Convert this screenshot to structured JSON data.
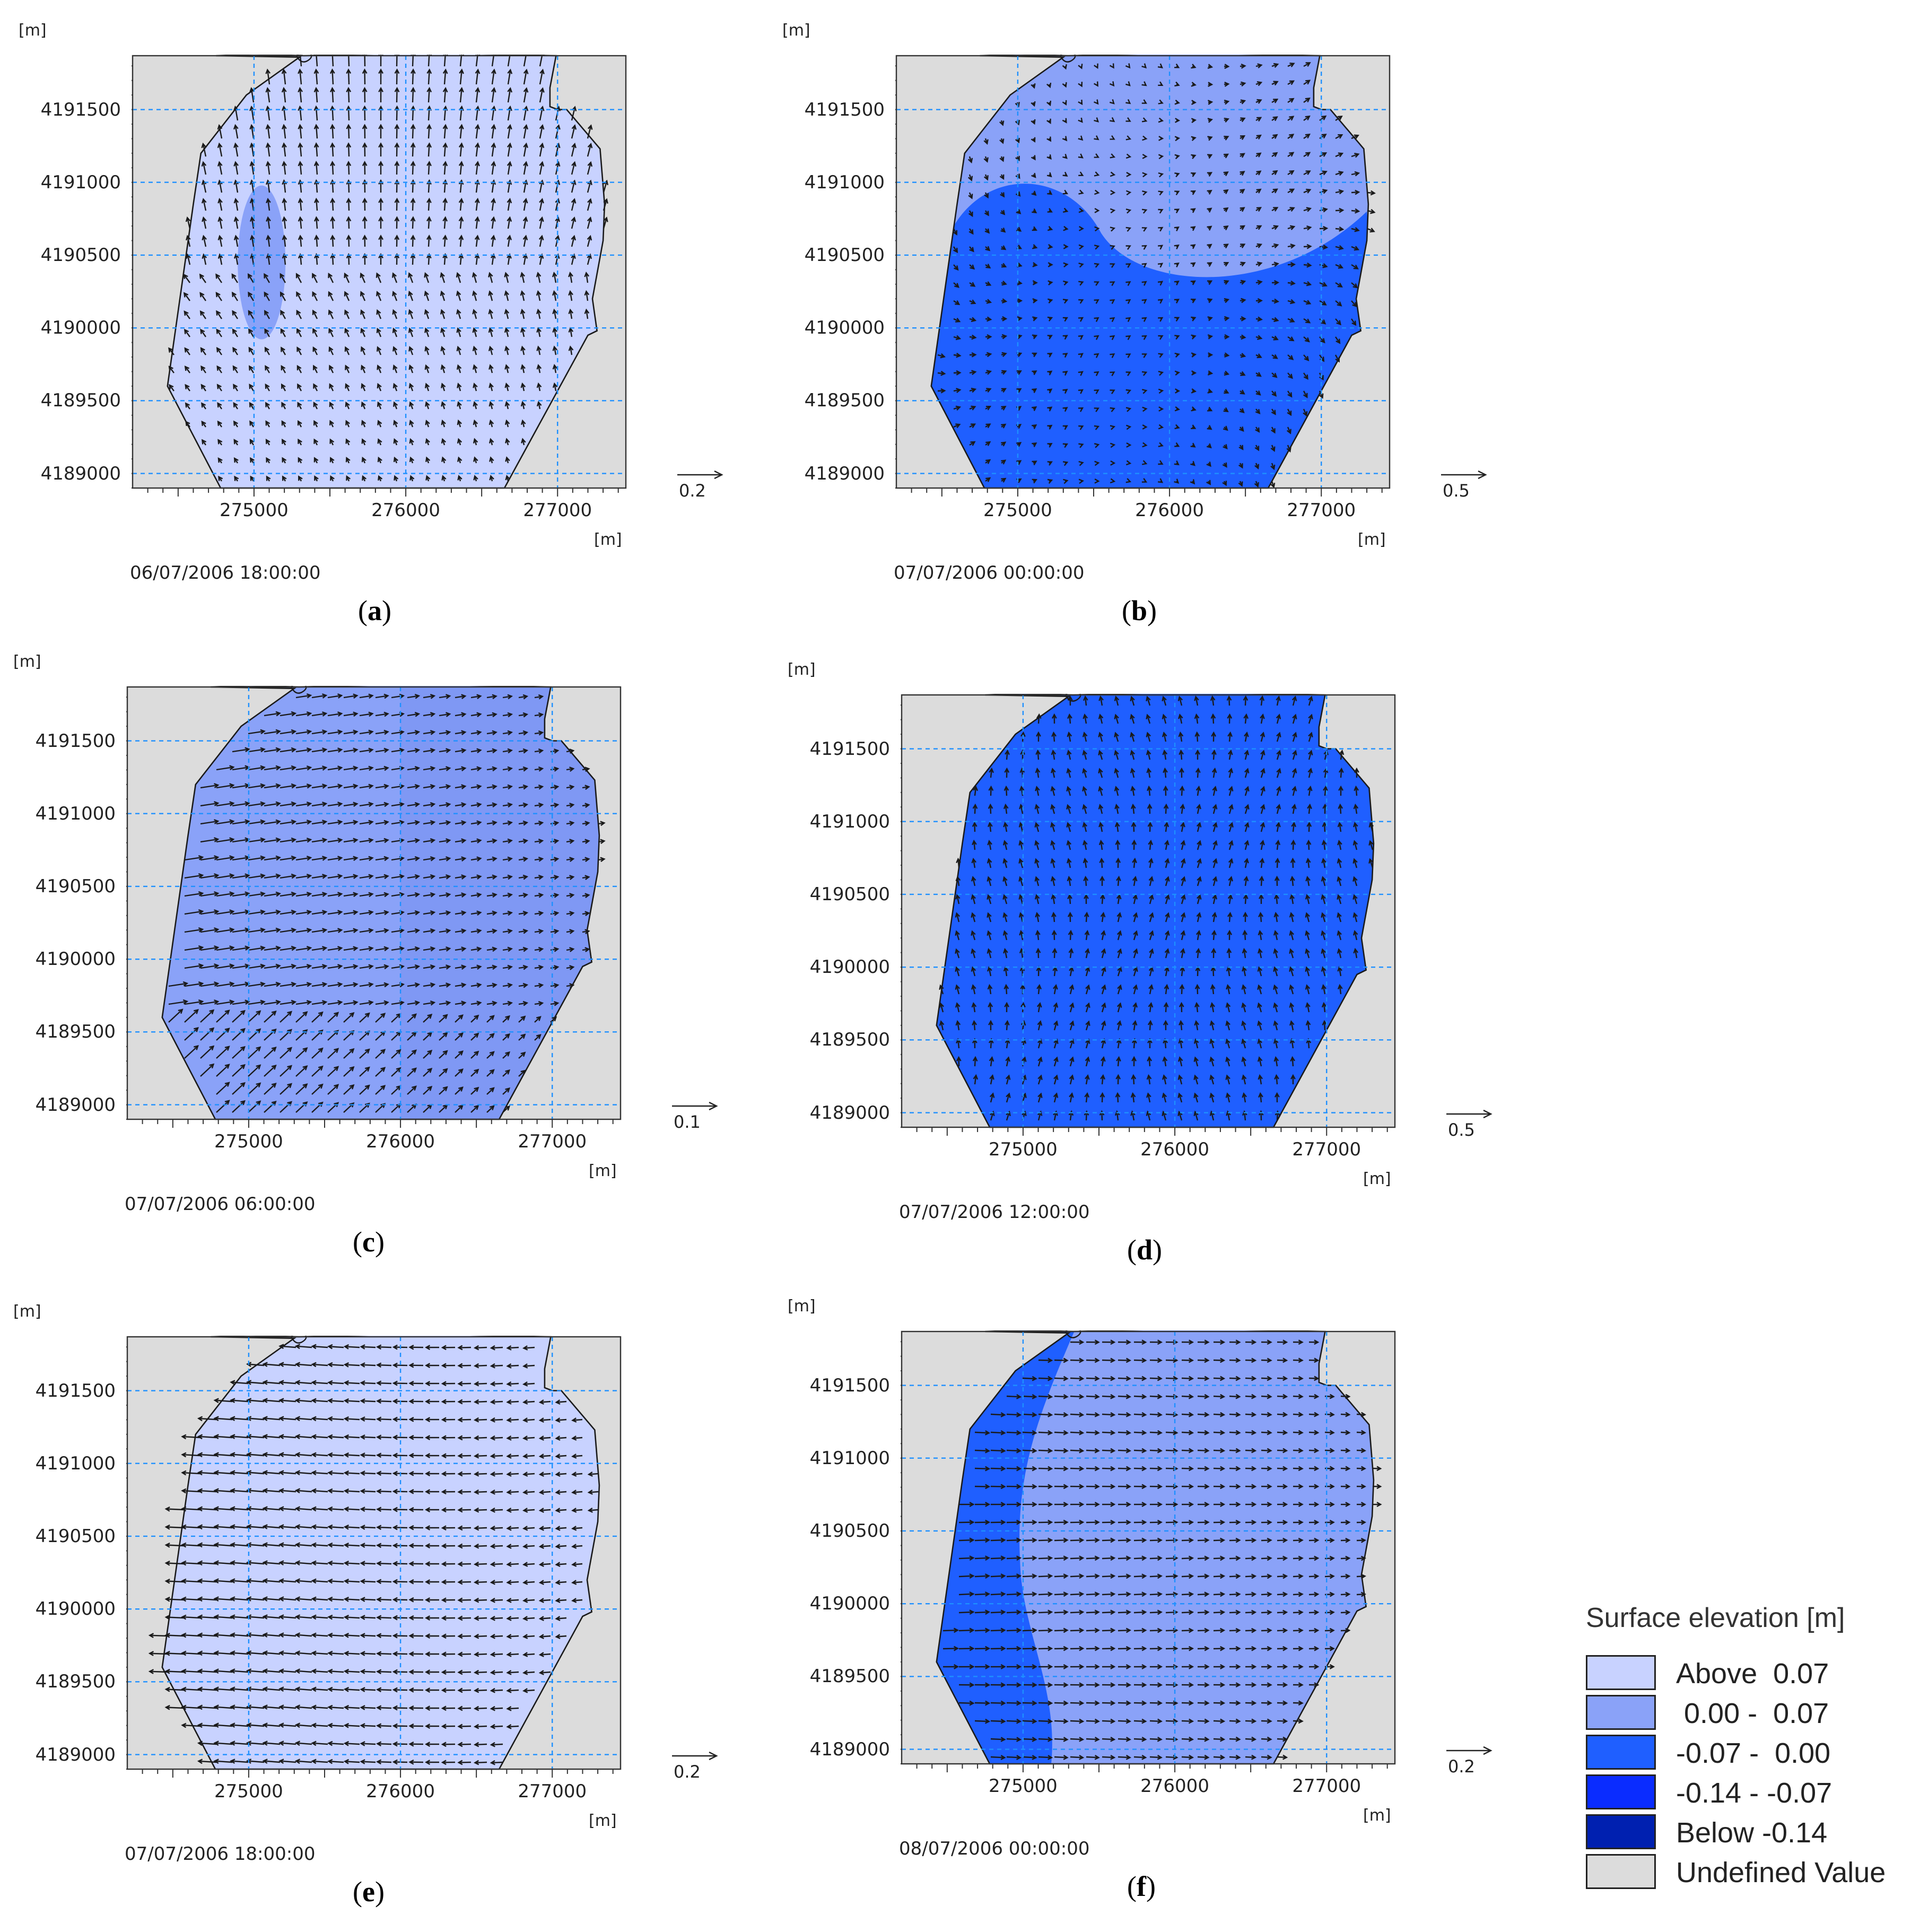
{
  "colors": {
    "above_0_07": "#c8d2ff",
    "range_0_00_0_07": "#8aa2f8",
    "range_m0_07_0_00": "#1f5fff",
    "range_m0_14_m0_07": "#0a2cff",
    "below_m0_14": "#0020b0",
    "undefined": "#dcdcdc",
    "grid": "#1e90ff",
    "arrow": "#1a1a1a",
    "coast": "#1a1a1a"
  },
  "axes": {
    "y_unit": "[m]",
    "x_unit": "[m]",
    "y_ticks": [
      "4191500",
      "4191000",
      "4190500",
      "4190000",
      "4189500",
      "4189000"
    ],
    "x_ticks": [
      "275000",
      "276000",
      "277000"
    ]
  },
  "panels": [
    {
      "letter": "a",
      "timestamp": "06/07/2006 18:00:00",
      "scale_value": "0.2",
      "background_class": "above_0_07",
      "feature": "blob",
      "arrow_strength": "medium"
    },
    {
      "letter": "b",
      "timestamp": "07/07/2006 00:00:00",
      "scale_value": "0.5",
      "background_class": "range_0_00_0_07",
      "feature": "south_low",
      "arrow_strength": "weak"
    },
    {
      "letter": "c",
      "timestamp": "07/07/2006 06:00:00",
      "scale_value": "0.1",
      "background_class": "range_0_00_0_07",
      "feature": "west_high",
      "arrow_strength": "strong"
    },
    {
      "letter": "d",
      "timestamp": "07/07/2006 12:00:00",
      "scale_value": "0.5",
      "background_class": "range_m0_07_0_00",
      "feature": "none",
      "arrow_strength": "weak"
    },
    {
      "letter": "e",
      "timestamp": "07/07/2006 18:00:00",
      "scale_value": "0.2",
      "background_class": "above_0_07",
      "feature": "none",
      "arrow_strength": "strong"
    },
    {
      "letter": "f",
      "timestamp": "08/07/2006 00:00:00",
      "scale_value": "0.2",
      "background_class": "range_0_00_0_07",
      "feature": "west_low",
      "arrow_strength": "medium"
    }
  ],
  "legend": {
    "title": "Surface elevation [m]",
    "items": [
      {
        "label": "Above  0.07",
        "color": "#c8d2ff"
      },
      {
        "label": " 0.00 -  0.07",
        "color": "#8aa2f8"
      },
      {
        "label": "-0.07 -  0.00",
        "color": "#1f5fff"
      },
      {
        "label": "-0.14 - -0.07",
        "color": "#0a2cff"
      },
      {
        "label": "Below -0.14",
        "color": "#0020b0"
      },
      {
        "label": "Undefined Value",
        "color": "#dcdcdc"
      }
    ]
  }
}
